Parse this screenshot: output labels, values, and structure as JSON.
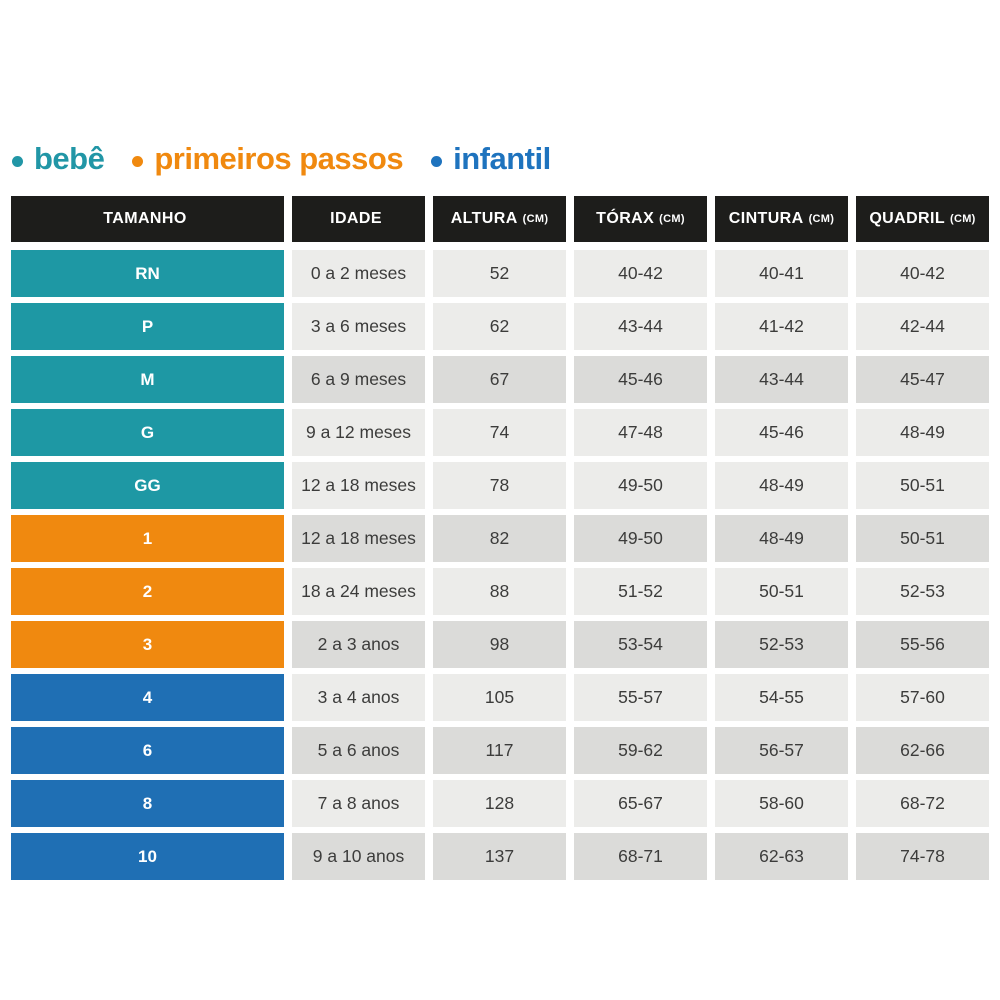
{
  "page": {
    "background": "#ffffff"
  },
  "legend": {
    "items": [
      {
        "label": "bebê",
        "color": "#2196A6"
      },
      {
        "label": "primeiros passos",
        "color": "#F0890F"
      },
      {
        "label": "infantil",
        "color": "#1E73BE"
      }
    ]
  },
  "chart_data": {
    "type": "table",
    "title": "",
    "header_bg": "#1D1D1B",
    "header_text_color": "#FFFFFF",
    "row_shades": {
      "light": "#ECECEA",
      "dark": "#DBDBD9"
    },
    "group_colors": {
      "bebe": "#1E98A4",
      "primeiros_passos": "#F0890F",
      "infantil": "#1F6FB4"
    },
    "columns": [
      {
        "label": "TAMANHO",
        "unit": ""
      },
      {
        "label": "IDADE",
        "unit": ""
      },
      {
        "label": "ALTURA",
        "unit": "(CM)"
      },
      {
        "label": "TÓRAX",
        "unit": "(CM)"
      },
      {
        "label": "CINTURA",
        "unit": "(CM)"
      },
      {
        "label": "QUADRIL",
        "unit": "(CM)"
      }
    ],
    "rows": [
      {
        "size": "RN",
        "group": "bebe",
        "shade": "light",
        "values": [
          "0 a 2 meses",
          "52",
          "40-42",
          "40-41",
          "40-42"
        ]
      },
      {
        "size": "P",
        "group": "bebe",
        "shade": "light",
        "values": [
          "3 a 6 meses",
          "62",
          "43-44",
          "41-42",
          "42-44"
        ]
      },
      {
        "size": "M",
        "group": "bebe",
        "shade": "dark",
        "values": [
          "6 a 9 meses",
          "67",
          "45-46",
          "43-44",
          "45-47"
        ]
      },
      {
        "size": "G",
        "group": "bebe",
        "shade": "light",
        "values": [
          "9 a 12 meses",
          "74",
          "47-48",
          "45-46",
          "48-49"
        ]
      },
      {
        "size": "GG",
        "group": "bebe",
        "shade": "light",
        "values": [
          "12 a 18 meses",
          "78",
          "49-50",
          "48-49",
          "50-51"
        ]
      },
      {
        "size": "1",
        "group": "primeiros_passos",
        "shade": "dark",
        "values": [
          "12 a 18 meses",
          "82",
          "49-50",
          "48-49",
          "50-51"
        ]
      },
      {
        "size": "2",
        "group": "primeiros_passos",
        "shade": "light",
        "values": [
          "18 a 24 meses",
          "88",
          "51-52",
          "50-51",
          "52-53"
        ]
      },
      {
        "size": "3",
        "group": "primeiros_passos",
        "shade": "dark",
        "values": [
          "2 a 3 anos",
          "98",
          "53-54",
          "52-53",
          "55-56"
        ]
      },
      {
        "size": "4",
        "group": "infantil",
        "shade": "light",
        "values": [
          "3 a 4 anos",
          "105",
          "55-57",
          "54-55",
          "57-60"
        ]
      },
      {
        "size": "6",
        "group": "infantil",
        "shade": "dark",
        "values": [
          "5 a 6 anos",
          "117",
          "59-62",
          "56-57",
          "62-66"
        ]
      },
      {
        "size": "8",
        "group": "infantil",
        "shade": "light",
        "values": [
          "7 a 8 anos",
          "128",
          "65-67",
          "58-60",
          "68-72"
        ]
      },
      {
        "size": "10",
        "group": "infantil",
        "shade": "dark",
        "values": [
          "9 a 10 anos",
          "137",
          "68-71",
          "62-63",
          "74-78"
        ]
      }
    ]
  }
}
